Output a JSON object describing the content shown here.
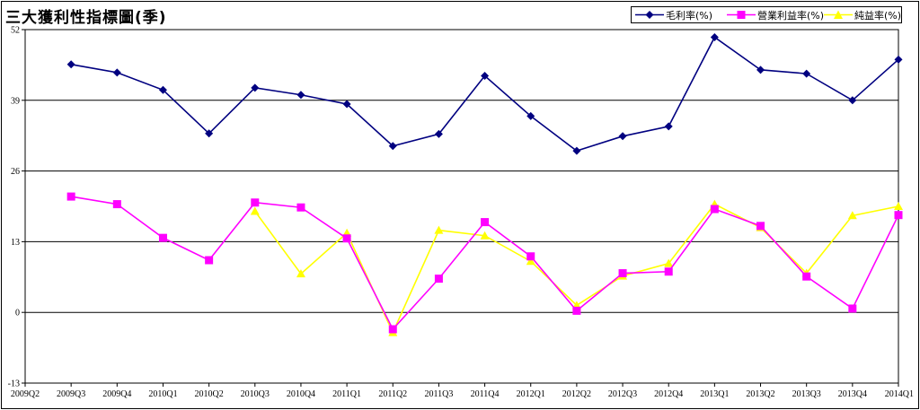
{
  "chart_data": {
    "type": "line",
    "title": "三大獲利性指標圖(季)",
    "categories": [
      "2009Q2",
      "2009Q3",
      "2009Q4",
      "2010Q1",
      "2010Q2",
      "2010Q3",
      "2010Q4",
      "2011Q1",
      "2011Q2",
      "2011Q3",
      "2011Q4",
      "2012Q1",
      "2012Q2",
      "2012Q3",
      "2012Q4",
      "2013Q1",
      "2013Q2",
      "2013Q3",
      "2013Q4",
      "2014Q1"
    ],
    "ylim": [
      -13,
      52
    ],
    "yticks": [
      -13,
      0,
      13,
      26,
      39,
      52
    ],
    "grid": true,
    "legend_position": "top-right",
    "series": [
      {
        "name": "毛利率(%)",
        "color": "#000080",
        "marker": "diamond",
        "values": [
          null,
          45.6,
          44.1,
          40.9,
          32.9,
          41.3,
          40.0,
          38.3,
          30.6,
          32.8,
          43.5,
          36.1,
          29.7,
          32.4,
          34.2,
          50.6,
          44.6,
          43.9,
          39.0,
          46.5
        ]
      },
      {
        "name": "營業利益率(%)",
        "color": "#ff00ff",
        "marker": "square",
        "values": [
          null,
          21.3,
          19.9,
          13.7,
          9.6,
          20.2,
          19.3,
          13.6,
          -3.1,
          6.2,
          16.6,
          10.3,
          0.3,
          7.2,
          7.5,
          19.0,
          15.9,
          6.6,
          0.7,
          17.9
        ]
      },
      {
        "name": "純益率(%)",
        "color": "#ffff00",
        "marker": "triangle",
        "values": [
          null,
          null,
          null,
          null,
          null,
          18.6,
          7.1,
          14.6,
          -3.7,
          15.1,
          14.1,
          9.4,
          1.3,
          6.7,
          9.0,
          19.9,
          15.6,
          7.2,
          17.8,
          19.5
        ]
      }
    ]
  }
}
